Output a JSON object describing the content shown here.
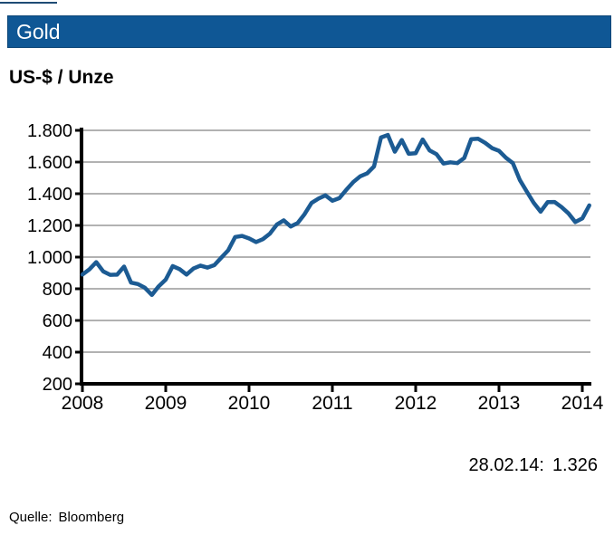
{
  "header": {
    "title": "Gold"
  },
  "subtitle": "US-$ / Unze",
  "annotation": {
    "date_label": "28.02.14:",
    "value": "1.326"
  },
  "footer": {
    "source_label": "Quelle:",
    "source_name": "Bloomberg"
  },
  "colors": {
    "header_bg": "#0f5795",
    "header_border": "#0d4677",
    "line": "#1c5b93",
    "grid": "#b2b2b2",
    "axis": "#000000",
    "text": "#000000",
    "top_artifact": "#1f4b74"
  },
  "chart_data": {
    "type": "line",
    "title": "Gold",
    "ylabel": "US-$ / Unze",
    "xlabel": "",
    "grid": true,
    "legend": false,
    "frequency": "monthly",
    "start": "2008-01",
    "end": "2014-02",
    "ylim": [
      200,
      1800
    ],
    "y_tick_step": 200,
    "y_tick_labels": [
      "200",
      "400",
      "600",
      "800",
      "1.000",
      "1.200",
      "1.400",
      "1.600",
      "1.800"
    ],
    "x_tick_labels": [
      "2008",
      "2009",
      "2010",
      "2011",
      "2012",
      "2013",
      "2014"
    ],
    "last_point": {
      "date": "28.02.14",
      "value": 1326
    },
    "series": [
      {
        "name": "Gold US-$ / Unze",
        "values": [
          890,
          922,
          968,
          910,
          888,
          889,
          940,
          839,
          830,
          806,
          761,
          816,
          858,
          943,
          924,
          890,
          928,
          946,
          934,
          949,
          996,
          1043,
          1127,
          1134,
          1118,
          1095,
          1113,
          1148,
          1205,
          1232,
          1193,
          1215,
          1271,
          1342,
          1369,
          1390,
          1356,
          1372,
          1424,
          1473,
          1510,
          1528,
          1572,
          1755,
          1771,
          1665,
          1739,
          1652,
          1656,
          1742,
          1674,
          1650,
          1591,
          1598,
          1593,
          1626,
          1744,
          1747,
          1721,
          1688,
          1671,
          1627,
          1593,
          1487,
          1414,
          1343,
          1287,
          1347,
          1348,
          1316,
          1276,
          1221,
          1244,
          1326
        ]
      }
    ]
  }
}
